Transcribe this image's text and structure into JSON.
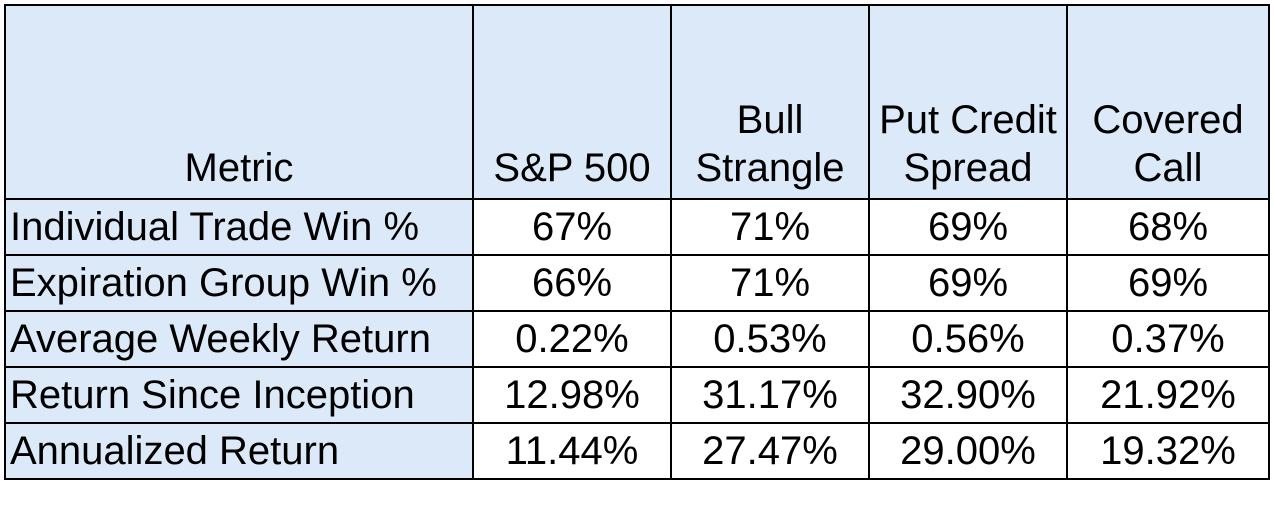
{
  "table": {
    "header": [
      {
        "lines": [
          "Metric"
        ]
      },
      {
        "lines": [
          "S&P 500"
        ]
      },
      {
        "lines": [
          "Bull",
          "Strangle"
        ]
      },
      {
        "lines": [
          "Put Credit",
          "Spread"
        ]
      },
      {
        "lines": [
          "Covered",
          "Call"
        ]
      }
    ],
    "rows": [
      {
        "metric": "Individual Trade Win %",
        "values": [
          "67%",
          "71%",
          "69%",
          "68%"
        ]
      },
      {
        "metric": "Expiration Group Win %",
        "values": [
          "66%",
          "71%",
          "69%",
          "69%"
        ]
      },
      {
        "metric": "Average Weekly Return",
        "values": [
          "0.22%",
          "0.53%",
          "0.56%",
          "0.37%"
        ]
      },
      {
        "metric": "Return Since Inception",
        "values": [
          "12.98%",
          "31.17%",
          "32.90%",
          "21.92%"
        ]
      },
      {
        "metric": "Annualized Return",
        "values": [
          "11.44%",
          "27.47%",
          "29.00%",
          "19.32%"
        ]
      }
    ]
  },
  "colors": {
    "header_fill": "#dce9f8",
    "border": "#000000",
    "cell_fill": "#ffffff"
  }
}
